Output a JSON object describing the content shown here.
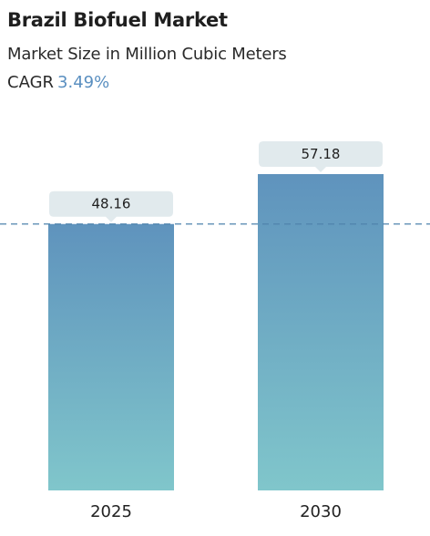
{
  "header": {
    "title": "Brazil Biofuel Market",
    "subtitle": "Market Size in Million Cubic Meters",
    "cagr_label": "CAGR",
    "cagr_value": "3.49%"
  },
  "colors": {
    "bar_top": "#5f93bd",
    "bar_bottom": "#80c6cb",
    "bubble": "#e1eaed",
    "reference_line": "#4f84ad",
    "cagr_accent": "#5a8fc0"
  },
  "chart_data": {
    "type": "bar",
    "categories": [
      "2025",
      "2030"
    ],
    "values": [
      48.16,
      57.18
    ],
    "data_labels": [
      "48.16",
      "57.18"
    ],
    "title": "Brazil Biofuel Market",
    "xlabel": "",
    "ylabel": "",
    "ylim": [
      0,
      57.18
    ],
    "reference_line": {
      "value": 48.16,
      "style": "dashed"
    },
    "grid": false,
    "legend": "none"
  }
}
